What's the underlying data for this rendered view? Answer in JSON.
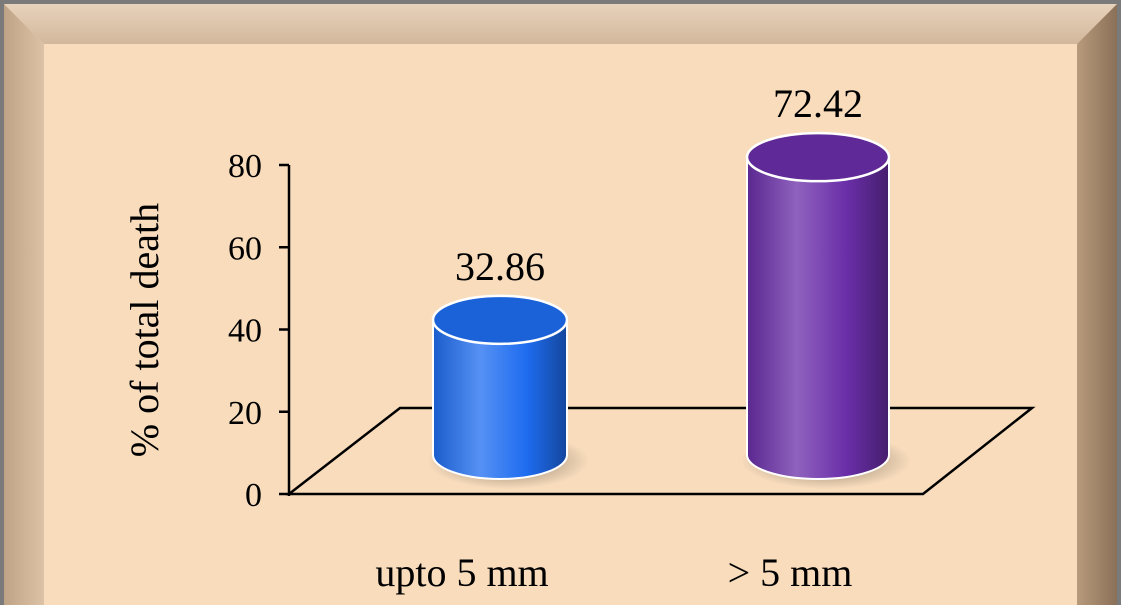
{
  "background_color": "#f8dcbc",
  "frame_bevel_color": "#a89078",
  "chart_data": {
    "type": "bar",
    "style": "3d-cylinder",
    "title": "",
    "xlabel": "",
    "ylabel": "% of total death",
    "ylim": [
      0,
      80
    ],
    "yticks": [
      0,
      20,
      40,
      60,
      80
    ],
    "categories": [
      "upto 5 mm",
      "> 5 mm"
    ],
    "values": [
      32.86,
      72.42
    ],
    "data_labels": [
      "32.86",
      "72.42"
    ],
    "colors": [
      "#1e6cf0",
      "#6a2ea8"
    ],
    "grid": false,
    "legend": "none"
  }
}
